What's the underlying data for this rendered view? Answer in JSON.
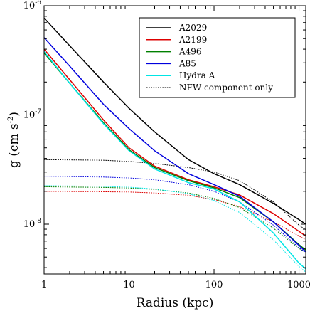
{
  "chart_data": {
    "type": "line",
    "xscale": "log",
    "yscale": "log",
    "xlabel": "Radius (kpc)",
    "ylabel_main": "g (cm s",
    "ylabel_sup": "-2",
    "ylabel_close": ")",
    "xlim": [
      1,
      1200
    ],
    "ylim": [
      3.5e-09,
      1e-06
    ],
    "grid": false,
    "legend_position": "top-right",
    "xticks": [
      {
        "value": 1,
        "label": "1"
      },
      {
        "value": 10,
        "label": "10"
      },
      {
        "value": 100,
        "label": "100"
      },
      {
        "value": 1000,
        "label": "1000"
      }
    ],
    "yticks": [
      {
        "value": 1e-08,
        "base": "10",
        "exp": "-8"
      },
      {
        "value": 1e-07,
        "base": "10",
        "exp": "-7"
      },
      {
        "value": 1e-06,
        "base": "10",
        "exp": "-6"
      }
    ],
    "series": [
      {
        "name": "A2029",
        "color": "#000000",
        "style": "solid",
        "x": [
          1,
          2,
          5,
          10,
          20,
          50,
          100,
          200,
          500,
          1000,
          1200
        ],
        "y": [
          7.7e-07,
          4.3e-07,
          2e-07,
          1.15e-07,
          7e-08,
          3.9e-08,
          2.9e-08,
          2.3e-08,
          1.55e-08,
          1.1e-08,
          1e-08
        ]
      },
      {
        "name": "A2199",
        "color": "#dd0000",
        "style": "solid",
        "x": [
          1,
          2,
          5,
          10,
          20,
          50,
          100,
          200,
          500,
          1000,
          1200
        ],
        "y": [
          4e-07,
          2.1e-07,
          9e-08,
          5e-08,
          3.4e-08,
          2.55e-08,
          2.2e-08,
          1.85e-08,
          1.25e-08,
          8.6e-09,
          7.8e-09
        ]
      },
      {
        "name": "A496",
        "color": "#008000",
        "style": "solid",
        "x": [
          1,
          2,
          5,
          10,
          20,
          50,
          100,
          200,
          500,
          1000,
          1200
        ],
        "y": [
          3.7e-07,
          1.95e-07,
          8.5e-08,
          4.8e-08,
          3.3e-08,
          2.5e-08,
          2.15e-08,
          1.75e-08,
          1.05e-08,
          6.5e-09,
          5.8e-09
        ]
      },
      {
        "name": "A85",
        "color": "#0000dd",
        "style": "solid",
        "x": [
          1,
          2,
          5,
          10,
          20,
          50,
          100,
          200,
          500,
          1000,
          1200
        ],
        "y": [
          5.1e-07,
          2.8e-07,
          1.25e-07,
          7.5e-08,
          4.7e-08,
          2.9e-08,
          2.3e-08,
          1.8e-08,
          1.05e-08,
          6.4e-09,
          5.6e-09
        ]
      },
      {
        "name": "Hydra A",
        "color": "#00e5e5",
        "style": "solid",
        "x": [
          1,
          2,
          5,
          10,
          20,
          50,
          100,
          200,
          500,
          1000,
          1200
        ],
        "y": [
          3.8e-07,
          1.95e-07,
          8.3e-08,
          4.7e-08,
          3.2e-08,
          2.4e-08,
          2.1e-08,
          1.6e-08,
          8.3e-09,
          4.4e-09,
          3.9e-09
        ]
      },
      {
        "name": "NFW component only",
        "color": "#000000",
        "style": "dotted",
        "x": [
          1,
          5,
          10,
          20,
          50,
          100,
          200,
          500,
          1000,
          1200
        ],
        "y": [
          3.9e-08,
          3.85e-08,
          3.75e-08,
          3.6e-08,
          3.3e-08,
          3e-08,
          2.5e-08,
          1.6e-08,
          9.8e-09,
          8.9e-09
        ]
      },
      {
        "color": "#dd0000",
        "style": "dotted",
        "x": [
          1,
          5,
          10,
          20,
          50,
          100,
          200,
          500,
          1000,
          1200
        ],
        "y": [
          2e-08,
          1.98e-08,
          1.97e-08,
          1.93e-08,
          1.84e-08,
          1.68e-08,
          1.45e-08,
          1.05e-08,
          7.8e-09,
          7.2e-09
        ]
      },
      {
        "color": "#008000",
        "style": "dotted",
        "x": [
          1,
          5,
          10,
          20,
          50,
          100,
          200,
          500,
          1000,
          1200
        ],
        "y": [
          2.2e-08,
          2.17e-08,
          2.14e-08,
          2.08e-08,
          1.93e-08,
          1.72e-08,
          1.42e-08,
          9.2e-09,
          6e-09,
          5.5e-09
        ]
      },
      {
        "color": "#0000dd",
        "style": "dotted",
        "x": [
          1,
          5,
          10,
          20,
          50,
          100,
          200,
          500,
          1000,
          1200
        ],
        "y": [
          2.75e-08,
          2.7e-08,
          2.65e-08,
          2.55e-08,
          2.3e-08,
          2e-08,
          1.6e-08,
          9.8e-09,
          6.1e-09,
          5.5e-09
        ]
      },
      {
        "color": "#00e5e5",
        "style": "dotted",
        "x": [
          1,
          5,
          10,
          20,
          50,
          100,
          200,
          500,
          1000,
          1200
        ],
        "y": [
          2.25e-08,
          2.22e-08,
          2.18e-08,
          2.1e-08,
          1.9e-08,
          1.65e-08,
          1.28e-08,
          7.2e-09,
          4.1e-09,
          3.65e-09
        ]
      }
    ]
  }
}
